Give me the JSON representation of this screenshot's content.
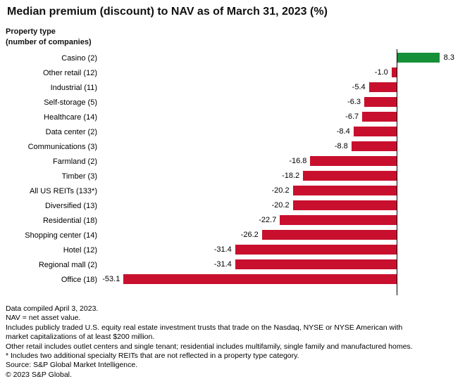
{
  "chart_data": {
    "type": "bar",
    "orientation": "horizontal",
    "title": "Median premium (discount) to NAV as of March 31, 2023 (%)",
    "ylabel_lines": [
      "Property type",
      "(number of companies)"
    ],
    "xlabel": "",
    "categories": [
      "Casino (2)",
      "Other retail (12)",
      "Industrial (11)",
      "Self-storage (5)",
      "Healthcare (14)",
      "Data center (2)",
      "Communications (3)",
      "Farmland (2)",
      "Timber (3)",
      "All US REITs (133*)",
      "Diversified (13)",
      "Residential (18)",
      "Shopping center (14)",
      "Hotel (12)",
      "Regional mall (2)",
      "Office (18)"
    ],
    "values": [
      8.3,
      -1.0,
      -5.4,
      -6.3,
      -6.7,
      -8.4,
      -8.8,
      -16.8,
      -18.2,
      -20.2,
      -20.2,
      -22.7,
      -26.2,
      -31.4,
      -31.4,
      -53.1
    ],
    "colors": {
      "positive_bar": "#169038",
      "negative_bar": "#C8102E",
      "zero_line": "#000000"
    },
    "xlim": [
      -54.1,
      13
    ],
    "grid": false,
    "legend": false,
    "value_labels": "one_decimal"
  },
  "footnotes": [
    "Data compiled April 3, 2023.",
    "NAV = net asset value.",
    "Includes publicly traded U.S. equity real estate investment trusts that trade on the Nasdaq, NYSE or NYSE American with",
    "market capitalizations of at least $200 million.",
    "Other retail includes outlet centers and single tenant; residential includes multifamily, single family and manufactured homes.",
    "* Includes two additional specialty REITs that are not reflected in a property type category.",
    "Source: S&P Global Market Intelligence.",
    "© 2023 S&P Global."
  ]
}
